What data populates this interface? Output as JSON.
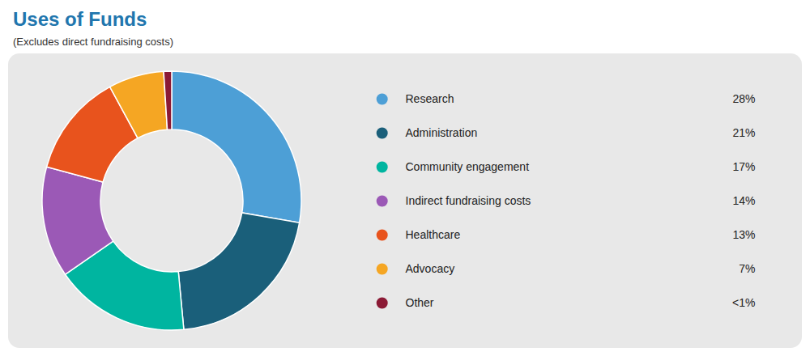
{
  "chart_data": {
    "type": "pie",
    "title": "Uses of Funds",
    "subtitle": "(Excludes direct fundraising costs)",
    "categories": [
      "Research",
      "Administration",
      "Community engagement",
      "Indirect fundraising costs",
      "Healthcare",
      "Advocacy",
      "Other"
    ],
    "values": [
      28,
      21,
      17,
      14,
      13,
      7,
      1
    ],
    "value_labels": [
      "28%",
      "21%",
      "17%",
      "14%",
      "13%",
      "7%",
      "<1%"
    ],
    "colors": [
      "#4D9FD6",
      "#1A5F7A",
      "#00B5A0",
      "#9B59B6",
      "#E8531D",
      "#F5A623",
      "#8B1A35"
    ],
    "legend": "right"
  }
}
